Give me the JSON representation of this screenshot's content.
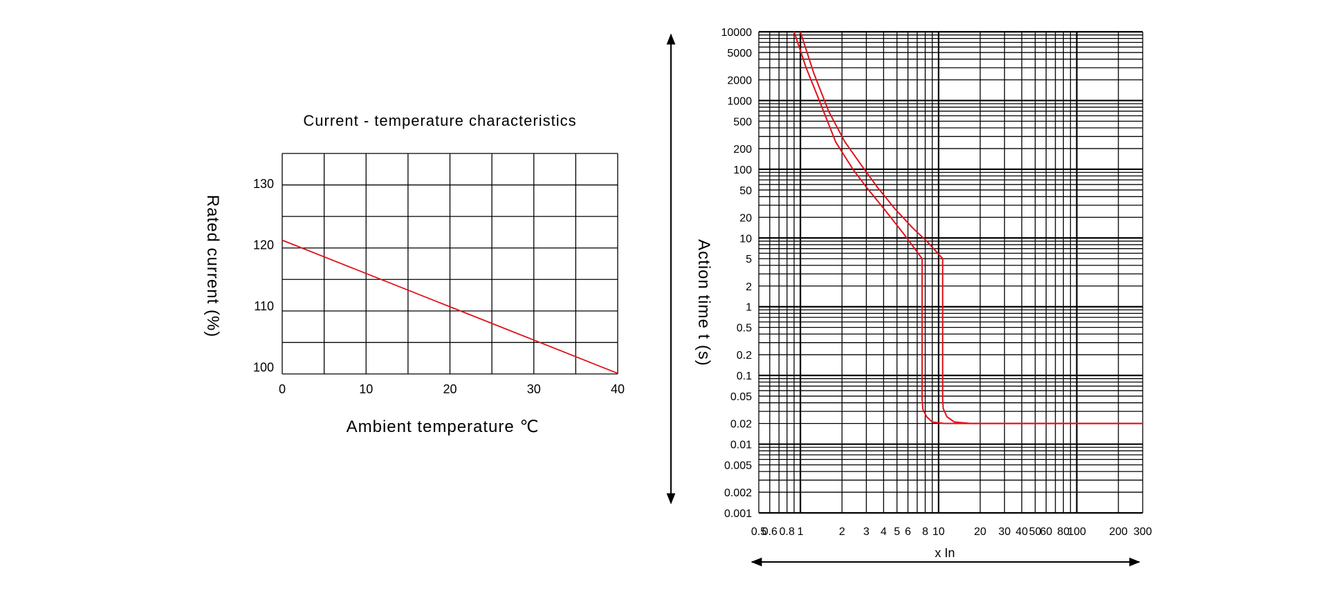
{
  "colors": {
    "curve": "#e3101a",
    "grid": "#000000",
    "background": "#ffffff"
  },
  "chart_data": [
    {
      "type": "line",
      "title": "Current - temperature characteristics",
      "xlabel": "Ambient temperature ℃",
      "ylabel": "Rated current (%)",
      "xlim": [
        0,
        40
      ],
      "ylim": [
        98.9,
        135
      ],
      "grid": true,
      "xticks": [
        0,
        10,
        20,
        30,
        40
      ],
      "yticks": [
        100,
        110,
        120,
        130
      ],
      "series": [
        {
          "x": [
            0,
            40
          ],
          "y": [
            120.8,
            99.0
          ]
        }
      ]
    },
    {
      "type": "line",
      "xlabel": "x In",
      "ylabel": "Action time t (s)",
      "x_scale": "log",
      "y_scale": "log",
      "xlim": [
        0.5,
        300
      ],
      "ylim": [
        0.001,
        10000
      ],
      "grid": true,
      "xticks": [
        0.5,
        0.6,
        0.8,
        1,
        2,
        3,
        4,
        5,
        6,
        8,
        10,
        20,
        30,
        40,
        50,
        60,
        80,
        100,
        200,
        300
      ],
      "xtick_labels": [
        "0.5",
        "0.6",
        "0.8",
        "1",
        "2",
        "3",
        "4",
        "5",
        "6",
        "8",
        "10",
        "20",
        "30",
        "40",
        "50",
        "60",
        "80",
        "100",
        "200",
        "300"
      ],
      "yticks": [
        0.001,
        0.002,
        0.005,
        0.01,
        0.02,
        0.05,
        0.1,
        0.2,
        0.5,
        1,
        2,
        5,
        10,
        20,
        50,
        100,
        200,
        500,
        1000,
        2000,
        5000,
        10000
      ],
      "ytick_labels": [
        "0.001",
        "0.002",
        "0.005",
        "0.01",
        "0.02",
        "0.05",
        "0.1",
        "0.2",
        "0.5",
        "1",
        "2",
        "5",
        "10",
        "20",
        "50",
        "100",
        "200",
        "500",
        "1000",
        "2000",
        "5000",
        "10000"
      ],
      "series": [
        {
          "x": [
            0.9,
            1.1,
            1.4,
            1.8,
            2.4,
            3.0,
            4.0,
            5.5,
            7.6,
            7.6,
            7.7,
            8.2,
            9.0,
            11.0,
            16.0,
            300
          ],
          "y": [
            10000,
            3000,
            900,
            250,
            100,
            55,
            27,
            12,
            5,
            0.045,
            0.032,
            0.025,
            0.021,
            0.02,
            0.02,
            0.02
          ]
        },
        {
          "x": [
            1.0,
            1.25,
            1.6,
            2.1,
            2.8,
            3.6,
            4.8,
            6.5,
            8.2,
            10.7,
            10.7,
            10.8,
            11.5,
            13.0,
            17.0,
            300
          ],
          "y": [
            10000,
            2500,
            700,
            250,
            110,
            55,
            27,
            14,
            9,
            5,
            0.045,
            0.033,
            0.025,
            0.021,
            0.02,
            0.02
          ]
        }
      ]
    }
  ]
}
